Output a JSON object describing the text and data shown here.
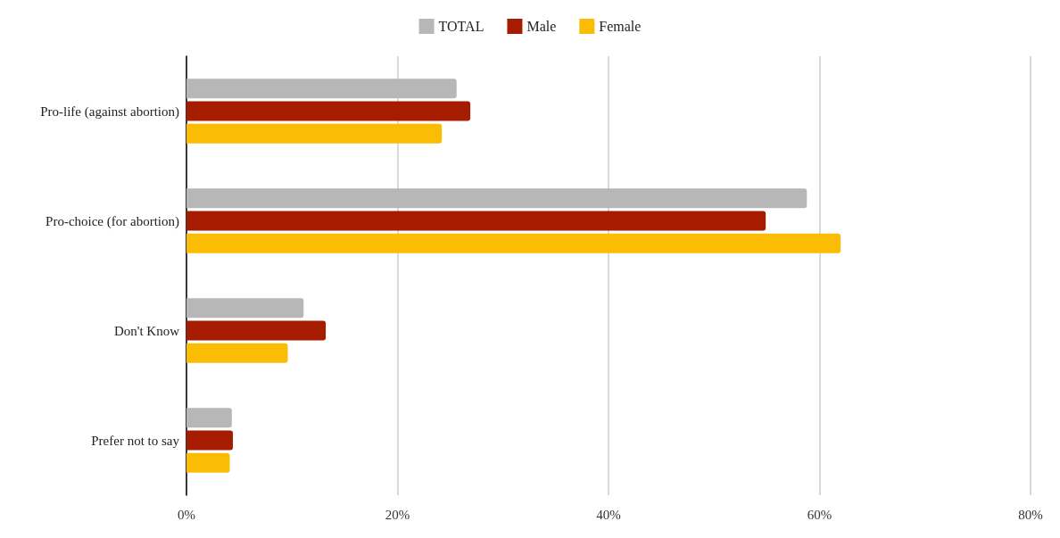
{
  "chart_data": {
    "type": "bar",
    "orientation": "horizontal",
    "categories": [
      "Pro-life (against abortion)",
      "Pro-choice (for abortion)",
      "Don't Know",
      "Prefer not to say"
    ],
    "series": [
      {
        "name": "TOTAL",
        "color": "#b7b7b7",
        "values": [
          25.6,
          58.8,
          11.1,
          4.3
        ]
      },
      {
        "name": "Male",
        "color": "#a61c00",
        "values": [
          26.9,
          54.9,
          13.2,
          4.4
        ]
      },
      {
        "name": "Female",
        "color": "#fbbc04",
        "values": [
          24.2,
          62.0,
          9.6,
          4.1
        ]
      }
    ],
    "xlim": [
      0,
      80
    ],
    "xticks": [
      {
        "value": 0,
        "label": "0%"
      },
      {
        "value": 20,
        "label": "20%"
      },
      {
        "value": 40,
        "label": "40%"
      },
      {
        "value": 60,
        "label": "60%"
      },
      {
        "value": 80,
        "label": "80%"
      }
    ],
    "grid": "x",
    "legend": "top"
  }
}
